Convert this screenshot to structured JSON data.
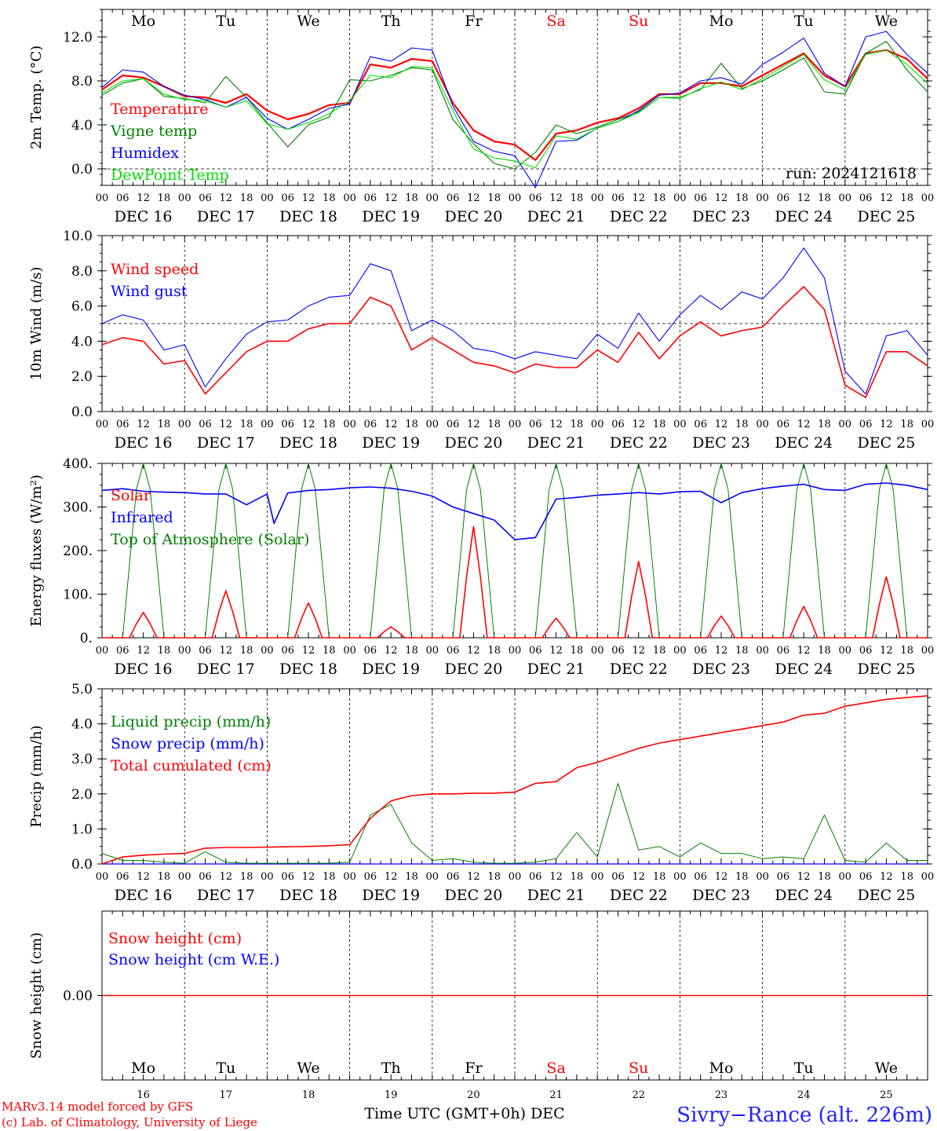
{
  "meta": {
    "location": "Sivry−Rance (alt. 226m)",
    "credit_line1": "MARv3.14 model forced by GFS",
    "credit_line2": "(c) Lab. of Climatology, University of Liege",
    "xlabel": "Time UTC (GMT+0h) DEC",
    "run": "run: 2024121618"
  },
  "days": {
    "names": [
      "Mo",
      "Tu",
      "We",
      "Th",
      "Fr",
      "Sa",
      "Su",
      "Mo",
      "Tu",
      "We"
    ],
    "weekend": [
      false,
      false,
      false,
      false,
      false,
      true,
      true,
      false,
      false,
      false
    ],
    "dates": [
      "DEC 16",
      "DEC 17",
      "DEC 18",
      "DEC 19",
      "DEC 20",
      "DEC 21",
      "DEC 22",
      "DEC 23",
      "DEC 24",
      "DEC 25"
    ],
    "short_dates": [
      "16",
      "17",
      "18",
      "19",
      "20",
      "21",
      "22",
      "23",
      "24",
      "25"
    ],
    "hour_ticks": [
      "00",
      "06",
      "12",
      "18"
    ],
    "final_tick": "00"
  },
  "colors": {
    "red": "#ff0000",
    "green": "#008000",
    "blue": "#0000ff",
    "lightgreen": "#00e000",
    "weekend": "#ff0000"
  },
  "chart_data": [
    {
      "type": "line",
      "ylabel": "2m Temp. (°C)",
      "ylim": [
        -1.5,
        14.5
      ],
      "yticks": [
        "0.0",
        "4.0",
        "8.0",
        "12.0"
      ],
      "ytick_values": [
        0,
        4,
        8,
        12
      ],
      "ref_line": 0,
      "x_hours": [
        0,
        6,
        12,
        18,
        24,
        30,
        36,
        42,
        48,
        54,
        60,
        66,
        72,
        78,
        84,
        90,
        96,
        102,
        108,
        114,
        120,
        126,
        132,
        138,
        144,
        150,
        156,
        162,
        168,
        174,
        180,
        186,
        192,
        198,
        204,
        210,
        216,
        222,
        228,
        234,
        240
      ],
      "series": [
        {
          "name": "Temperature",
          "color": "#ff0000",
          "values": [
            7.2,
            8.5,
            8.3,
            7.5,
            6.6,
            6.5,
            6.0,
            6.8,
            5.3,
            4.5,
            5.0,
            5.8,
            6.0,
            9.5,
            9.2,
            10.0,
            9.8,
            6.0,
            3.5,
            2.5,
            2.2,
            0.8,
            3.2,
            3.5,
            4.2,
            4.6,
            5.5,
            6.8,
            6.8,
            7.8,
            7.8,
            7.5,
            8.5,
            9.5,
            10.5,
            8.5,
            7.5,
            10.5,
            10.8,
            10.0,
            8.2
          ]
        },
        {
          "name": "Vigne temp",
          "color": "#008000",
          "values": [
            6.7,
            7.8,
            8.2,
            6.6,
            6.4,
            6.0,
            8.4,
            6.5,
            4.2,
            2.0,
            4.0,
            4.7,
            8.1,
            8.0,
            8.5,
            9.2,
            9.0,
            4.5,
            2.3,
            0.5,
            0.0,
            1.5,
            4.0,
            3.2,
            3.8,
            4.5,
            5.2,
            6.5,
            6.5,
            7.2,
            9.6,
            7.3,
            8.0,
            9.0,
            10.1,
            7.0,
            6.8,
            10.5,
            11.6,
            9.0,
            7.0
          ]
        },
        {
          "name": "Humidex",
          "color": "#0000ff",
          "values": [
            7.4,
            9.0,
            8.8,
            7.5,
            6.7,
            6.3,
            5.6,
            6.5,
            4.6,
            3.6,
            4.5,
            5.5,
            5.9,
            10.2,
            9.8,
            11.0,
            10.8,
            5.7,
            2.5,
            1.6,
            1.2,
            -1.7,
            2.5,
            2.6,
            3.7,
            4.3,
            5.3,
            6.7,
            6.9,
            8.0,
            8.3,
            7.7,
            9.5,
            10.6,
            11.9,
            8.7,
            7.5,
            12.0,
            12.5,
            10.4,
            8.7
          ]
        },
        {
          "name": "DewPoint Temp",
          "color": "#00e000",
          "values": [
            6.9,
            8.0,
            8.2,
            6.8,
            6.3,
            6.2,
            5.6,
            6.2,
            4.1,
            3.6,
            4.2,
            5.0,
            6.2,
            8.5,
            8.3,
            9.3,
            9.2,
            5.3,
            1.8,
            1.0,
            0.7,
            0.1,
            3.0,
            2.7,
            3.7,
            4.3,
            5.1,
            6.5,
            6.4,
            7.3,
            7.9,
            7.2,
            8.2,
            9.3,
            10.4,
            8.1,
            7.2,
            10.4,
            10.8,
            9.5,
            7.8
          ]
        }
      ]
    },
    {
      "type": "line",
      "ylabel": "10m Wind (m/s)",
      "ylim": [
        0,
        10
      ],
      "yticks": [
        "0.0",
        "2.0",
        "4.0",
        "6.0",
        "8.0",
        "10.0"
      ],
      "ytick_values": [
        0,
        2,
        4,
        6,
        8,
        10
      ],
      "ref_line": 5,
      "x_hours": [
        0,
        6,
        12,
        18,
        24,
        30,
        36,
        42,
        48,
        54,
        60,
        66,
        72,
        78,
        84,
        90,
        96,
        102,
        108,
        114,
        120,
        126,
        132,
        138,
        144,
        150,
        156,
        162,
        168,
        174,
        180,
        186,
        192,
        198,
        204,
        210,
        216,
        222,
        228,
        234,
        240
      ],
      "series": [
        {
          "name": "Wind speed",
          "color": "#ff0000",
          "values": [
            3.8,
            4.2,
            4.0,
            2.7,
            2.9,
            1.0,
            2.2,
            3.4,
            4.0,
            4.0,
            4.7,
            5.0,
            5.0,
            6.5,
            6.0,
            3.5,
            4.2,
            3.5,
            2.8,
            2.6,
            2.2,
            2.7,
            2.5,
            2.5,
            3.5,
            2.8,
            4.5,
            3.0,
            4.3,
            5.1,
            4.3,
            4.6,
            4.8,
            6.0,
            7.1,
            5.8,
            1.5,
            0.8,
            3.4,
            3.4,
            2.6
          ]
        },
        {
          "name": "Wind gust",
          "color": "#0000ff",
          "values": [
            5.0,
            5.5,
            5.2,
            3.5,
            3.8,
            1.4,
            3.0,
            4.4,
            5.1,
            5.2,
            6.0,
            6.5,
            6.6,
            8.4,
            8.0,
            4.6,
            5.2,
            4.6,
            3.6,
            3.4,
            3.0,
            3.4,
            3.2,
            3.0,
            4.4,
            3.6,
            5.6,
            4.0,
            5.5,
            6.6,
            5.8,
            6.8,
            6.4,
            7.6,
            9.3,
            7.6,
            2.3,
            1.0,
            4.3,
            4.6,
            3.2
          ]
        }
      ]
    },
    {
      "type": "line",
      "ylabel": "Energy fluxes (W/m²)",
      "ylim": [
        0,
        400
      ],
      "yticks": [
        "0.",
        "100.",
        "200.",
        "300.",
        "400."
      ],
      "ytick_values": [
        0,
        100,
        200,
        300,
        400
      ],
      "series": [
        {
          "name": "Solar",
          "color": "#ff0000",
          "peaks": [
            58,
            108,
            80,
            25,
            255,
            45,
            175,
            50,
            72,
            140
          ]
        },
        {
          "name": "Infrared",
          "color": "#0000ff",
          "x_hours": [
            0,
            6,
            12,
            18,
            24,
            30,
            36,
            42,
            48,
            50,
            54,
            60,
            66,
            72,
            78,
            84,
            90,
            96,
            102,
            108,
            114,
            120,
            126,
            132,
            138,
            144,
            150,
            156,
            162,
            168,
            174,
            180,
            186,
            192,
            198,
            204,
            210,
            216,
            222,
            228,
            234,
            240
          ],
          "values": [
            338,
            342,
            336,
            334,
            333,
            330,
            330,
            305,
            330,
            262,
            332,
            338,
            340,
            344,
            346,
            343,
            336,
            325,
            300,
            285,
            270,
            225,
            230,
            318,
            322,
            327,
            330,
            333,
            330,
            335,
            336,
            310,
            333,
            342,
            348,
            352,
            340,
            338,
            352,
            355,
            350,
            340
          ]
        },
        {
          "name": "Top of Atmosphere (Solar)",
          "color": "#008000",
          "peaks": [
            400,
            400,
            400,
            400,
            400,
            400,
            400,
            400,
            400,
            400
          ]
        }
      ]
    },
    {
      "type": "line",
      "ylabel": "Precip (mm/h)",
      "ylim": [
        0,
        5
      ],
      "yticks": [
        "0.0",
        "1.0",
        "2.0",
        "3.0",
        "4.0",
        "5.0"
      ],
      "ytick_values": [
        0,
        1,
        2,
        3,
        4,
        5
      ],
      "x_hours": [
        0,
        6,
        12,
        18,
        24,
        30,
        36,
        42,
        48,
        54,
        60,
        66,
        72,
        78,
        84,
        90,
        96,
        102,
        108,
        114,
        120,
        126,
        132,
        138,
        144,
        150,
        156,
        162,
        168,
        174,
        180,
        186,
        192,
        198,
        204,
        210,
        216,
        222,
        228,
        234,
        240
      ],
      "series": [
        {
          "name": "Liquid precip (mm/h)",
          "color": "#008000",
          "values": [
            0.3,
            0.1,
            0.1,
            0.05,
            0.02,
            0.35,
            0.05,
            0.02,
            0.02,
            0.02,
            0.02,
            0.02,
            0.05,
            1.4,
            1.7,
            0.6,
            0.1,
            0.15,
            0.05,
            0.02,
            0.02,
            0.05,
            0.15,
            0.9,
            0.2,
            2.3,
            0.4,
            0.5,
            0.2,
            0.6,
            0.3,
            0.3,
            0.15,
            0.2,
            0.15,
            1.4,
            0.1,
            0.05,
            0.6,
            0.1,
            0.1
          ]
        },
        {
          "name": "Snow precip (mm/h)",
          "color": "#0000ff",
          "values": [
            0,
            0,
            0,
            0,
            0,
            0,
            0,
            0,
            0,
            0,
            0,
            0,
            0,
            0,
            0,
            0,
            0,
            0,
            0,
            0,
            0,
            0,
            0,
            0,
            0,
            0,
            0,
            0,
            0,
            0,
            0,
            0,
            0,
            0,
            0,
            0,
            0,
            0,
            0,
            0,
            0
          ]
        },
        {
          "name": "Total cumulated (cm)",
          "color": "#ff0000",
          "values": [
            0.0,
            0.2,
            0.25,
            0.28,
            0.3,
            0.45,
            0.47,
            0.47,
            0.48,
            0.49,
            0.5,
            0.52,
            0.55,
            1.3,
            1.8,
            1.95,
            2.0,
            2.0,
            2.02,
            2.02,
            2.05,
            2.3,
            2.35,
            2.75,
            2.9,
            3.1,
            3.3,
            3.45,
            3.55,
            3.65,
            3.75,
            3.85,
            3.95,
            4.05,
            4.25,
            4.3,
            4.5,
            4.6,
            4.7,
            4.75,
            4.8
          ]
        }
      ]
    },
    {
      "type": "line",
      "ylabel": "Snow height (cm)",
      "ylim": [
        -1,
        1
      ],
      "yticks": [
        "0.00"
      ],
      "ytick_values": [
        0
      ],
      "series": [
        {
          "name": "Snow height (cm)",
          "color": "#ff0000",
          "values": [
            0,
            0
          ]
        },
        {
          "name": "Snow height (cm W.E.)",
          "color": "#0000ff",
          "values": [
            0,
            0
          ]
        }
      ]
    }
  ]
}
